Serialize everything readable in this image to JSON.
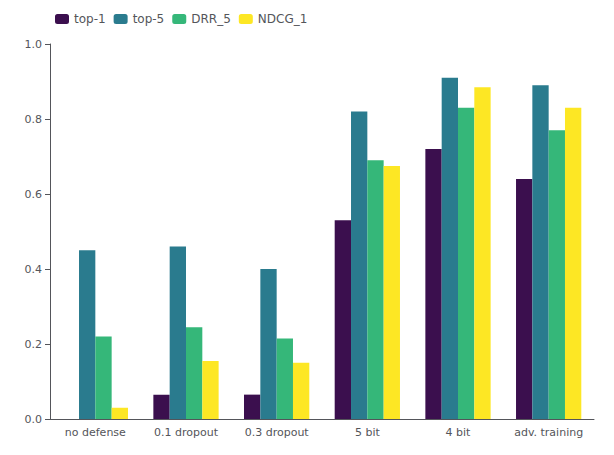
{
  "chart_data": {
    "type": "bar",
    "categories": [
      "no defense",
      "0.1 dropout",
      "0.3 dropout",
      "5 bit",
      "4 bit",
      "adv. training"
    ],
    "series": [
      {
        "name": "top-1",
        "color": "#3b0f4e",
        "values": [
          0.0,
          0.065,
          0.065,
          0.53,
          0.72,
          0.64
        ]
      },
      {
        "name": "top-5",
        "color": "#2a7b8e",
        "values": [
          0.45,
          0.46,
          0.4,
          0.82,
          0.91,
          0.89
        ]
      },
      {
        "name": "DRR_5",
        "color": "#35b779",
        "values": [
          0.22,
          0.245,
          0.215,
          0.69,
          0.83,
          0.77
        ]
      },
      {
        "name": "NDCG_1",
        "color": "#fde724",
        "values": [
          0.03,
          0.155,
          0.15,
          0.675,
          0.885,
          0.83
        ]
      }
    ],
    "ylim": [
      0,
      1.0
    ],
    "yticks": [
      {
        "value": 0.0,
        "label": "0.0"
      },
      0.2,
      0.4,
      0.6,
      0.8,
      {
        "value": 1.0,
        "label": "1.0"
      }
    ],
    "grid": false,
    "legend": "upper left"
  }
}
